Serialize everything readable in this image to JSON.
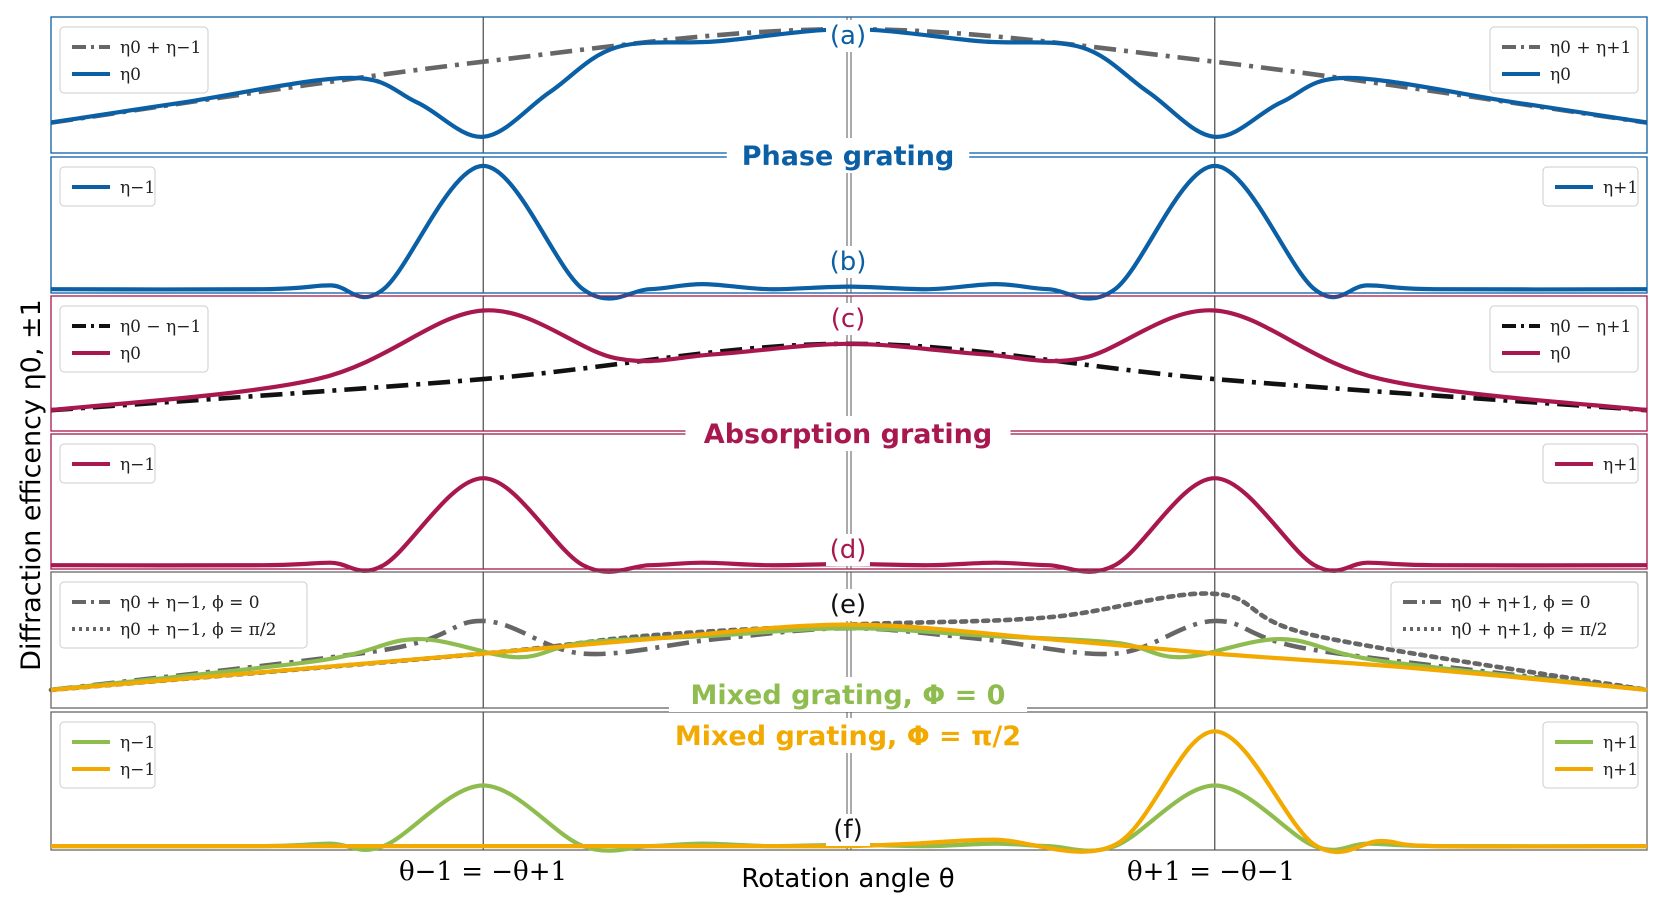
{
  "colors": {
    "phase": "#0b5fa5",
    "absorption": "#a8174e",
    "mixed0": "#8fbc4f",
    "mixedpi": "#f2a900",
    "gray": "#666666",
    "black": "#111111",
    "vline": "#555555"
  },
  "figure": {
    "ylabel": "Diffraction efficency η0, ±1",
    "xlabel": "Rotation angle θ",
    "xtick_left": "θ−1 = −θ+1",
    "xtick_right": "θ+1 = −θ−1",
    "band_phase": "Phase grating",
    "band_absorption": "Absorption grating",
    "band_mixed0": "Mixed grating, Φ = 0",
    "band_mixedpi": "Mixed grating, Φ = π/2"
  },
  "chart_data": [
    {
      "id": "a",
      "label": "(a)",
      "type": "line",
      "xlim": [
        -1.2,
        1.2
      ],
      "ylim": [
        0.25,
        0.92
      ],
      "series": [
        {
          "name": "η0 + η−1 (left) / η0 + η+1 (right)",
          "style": "dashdot",
          "color": "gray",
          "x": [
            -1.2,
            -0.55,
            0,
            0.55,
            1.2
          ],
          "y": [
            0.4,
            0.7,
            0.86,
            0.7,
            0.4
          ]
        },
        {
          "name": "η0",
          "style": "solid",
          "color": "phase",
          "x": [
            -1.2,
            -1.0,
            -0.75,
            -0.65,
            -0.55,
            -0.45,
            -0.35,
            -0.2,
            0,
            0.2,
            0.35,
            0.45,
            0.55,
            0.65,
            0.75,
            1.0,
            1.2
          ],
          "y": [
            0.4,
            0.5,
            0.62,
            0.5,
            0.33,
            0.55,
            0.77,
            0.8,
            0.86,
            0.8,
            0.77,
            0.55,
            0.33,
            0.5,
            0.62,
            0.5,
            0.4
          ]
        }
      ],
      "legend_left": [
        "η0 + η−1",
        "η0"
      ],
      "legend_right": [
        "η0 + η+1",
        "η0"
      ]
    },
    {
      "id": "b",
      "label": "(b)",
      "type": "line",
      "xlim": [
        -1.2,
        1.2
      ],
      "ylim": [
        -0.02,
        1.05
      ],
      "series": [
        {
          "name": "η−1 / η+1",
          "style": "solid",
          "color": "phase",
          "x": [
            -1.2,
            -0.88,
            -0.78,
            -0.7,
            -0.55,
            -0.4,
            -0.3,
            -0.22,
            -0.12,
            0,
            0.12,
            0.22,
            0.3,
            0.4,
            0.55,
            0.7,
            0.78,
            0.88,
            1.2
          ],
          "y": [
            0.01,
            0.01,
            0.04,
            0.01,
            0.98,
            0.01,
            0.01,
            0.05,
            0.01,
            0.03,
            0.01,
            0.05,
            0.01,
            0.01,
            0.98,
            0.01,
            0.04,
            0.01,
            0.01
          ]
        }
      ],
      "legend_left": [
        "η−1"
      ],
      "legend_right": [
        "η+1"
      ]
    },
    {
      "id": "c",
      "label": "(c)",
      "type": "line",
      "xlim": [
        -1.2,
        1.2
      ],
      "ylim": [
        0.3,
        0.95
      ],
      "series": [
        {
          "name": "η0 − η−1 / η0 − η+1",
          "style": "dashdot",
          "color": "black",
          "x": [
            -1.2,
            -0.55,
            0,
            0.55,
            1.2
          ],
          "y": [
            0.4,
            0.55,
            0.72,
            0.55,
            0.4
          ]
        },
        {
          "name": "η0",
          "style": "solid",
          "color": "absorption",
          "x": [
            -1.2,
            -0.8,
            -0.55,
            -0.35,
            -0.2,
            0,
            0.2,
            0.35,
            0.55,
            0.8,
            1.2
          ],
          "y": [
            0.4,
            0.55,
            0.88,
            0.65,
            0.67,
            0.72,
            0.67,
            0.65,
            0.88,
            0.55,
            0.4
          ]
        }
      ],
      "legend_left": [
        "η0 − η−1",
        "η0"
      ],
      "legend_right": [
        "η0 − η+1",
        "η0"
      ]
    },
    {
      "id": "d",
      "label": "(d)",
      "type": "line",
      "xlim": [
        -1.2,
        1.2
      ],
      "ylim": [
        -0.02,
        1.05
      ],
      "series": [
        {
          "name": "η−1 / η+1",
          "style": "solid",
          "color": "absorption",
          "x": [
            -1.2,
            -0.88,
            -0.78,
            -0.7,
            -0.55,
            -0.4,
            -0.3,
            -0.22,
            -0.12,
            0,
            0.12,
            0.22,
            0.3,
            0.4,
            0.55,
            0.7,
            0.78,
            0.88,
            1.2
          ],
          "y": [
            0.01,
            0.01,
            0.03,
            0.01,
            0.7,
            0.01,
            0.01,
            0.03,
            0.01,
            0.02,
            0.01,
            0.03,
            0.01,
            0.01,
            0.7,
            0.01,
            0.03,
            0.01,
            0.01
          ]
        }
      ],
      "legend_left": [
        "η−1"
      ],
      "legend_right": [
        "η+1"
      ]
    },
    {
      "id": "e",
      "label": "(e)",
      "type": "line",
      "xlim": [
        -1.2,
        1.2
      ],
      "ylim": [
        0.3,
        1.05
      ],
      "series": [
        {
          "name": "η0 + η−1, ϕ = 0 (left) / η0 + η+1, ϕ = 0 (right)",
          "style": "dashdot",
          "color": "gray",
          "x": [
            -1.2,
            -0.7,
            -0.55,
            -0.4,
            -0.2,
            0,
            0.2,
            0.4,
            0.55,
            0.7,
            1.2
          ],
          "y": [
            0.4,
            0.62,
            0.78,
            0.6,
            0.68,
            0.74,
            0.68,
            0.6,
            0.78,
            0.62,
            0.4
          ]
        },
        {
          "name": "η0 + η−1, ϕ = π/2 (left) / η0 + η+1, ϕ = π/2 (right)",
          "style": "dotted",
          "color": "gray",
          "x": [
            -1.2,
            -0.55,
            -0.3,
            0,
            0.3,
            0.55,
            0.7,
            1.2
          ],
          "y": [
            0.4,
            0.6,
            0.7,
            0.76,
            0.8,
            0.93,
            0.7,
            0.4
          ]
        },
        {
          "name": "η0, Φ = 0",
          "style": "solid",
          "color": "mixed0",
          "x": [
            -1.2,
            -0.8,
            -0.65,
            -0.5,
            -0.4,
            -0.2,
            0,
            0.2,
            0.4,
            0.5,
            0.65,
            0.8,
            1.2
          ],
          "y": [
            0.4,
            0.56,
            0.68,
            0.58,
            0.66,
            0.7,
            0.74,
            0.7,
            0.66,
            0.58,
            0.68,
            0.56,
            0.4
          ]
        },
        {
          "name": "η0, Φ = π/2",
          "style": "solid",
          "color": "mixedpi",
          "x": [
            -1.2,
            -0.55,
            -0.3,
            0,
            0.3,
            0.55,
            0.85,
            1.2
          ],
          "y": [
            0.4,
            0.6,
            0.68,
            0.76,
            0.68,
            0.6,
            0.52,
            0.4
          ]
        }
      ],
      "legend_left": [
        "η0 + η−1, ϕ = 0",
        "η0 + η−1, ϕ = π/2"
      ],
      "legend_right": [
        "η0 + η+1, ϕ = 0",
        "η0 + η+1, ϕ = π/2"
      ]
    },
    {
      "id": "f",
      "label": "(f)",
      "type": "line",
      "xlim": [
        -1.2,
        1.2
      ],
      "ylim": [
        -0.02,
        1.05
      ],
      "series": [
        {
          "name": "η−1 / η+1, Φ = 0",
          "style": "solid",
          "color": "mixed0",
          "x": [
            -1.2,
            -0.88,
            -0.78,
            -0.7,
            -0.55,
            -0.4,
            -0.3,
            -0.22,
            -0.12,
            0,
            0.12,
            0.22,
            0.3,
            0.4,
            0.55,
            0.7,
            0.78,
            0.88,
            1.2
          ],
          "y": [
            0.01,
            0.01,
            0.03,
            0.01,
            0.48,
            0.01,
            0.01,
            0.03,
            0.01,
            0.02,
            0.01,
            0.03,
            0.01,
            0.01,
            0.48,
            0.01,
            0.03,
            0.01,
            0.01
          ]
        },
        {
          "name": "η−1 / η+1, Φ = π/2",
          "style": "solid",
          "color": "mixedpi",
          "x": [
            -1.2,
            -0.7,
            -0.4,
            -0.25,
            -0.12,
            0,
            0.1,
            0.22,
            0.4,
            0.55,
            0.7,
            0.8,
            0.88,
            1.2
          ],
          "y": [
            0.01,
            0.01,
            0.01,
            0.01,
            0.01,
            0.01,
            0.03,
            0.06,
            0.02,
            0.9,
            0.02,
            0.05,
            0.01,
            0.01
          ]
        }
      ],
      "legend_left": [
        "η−1",
        "η−1"
      ],
      "legend_right": [
        "η+1",
        "η+1"
      ]
    }
  ]
}
